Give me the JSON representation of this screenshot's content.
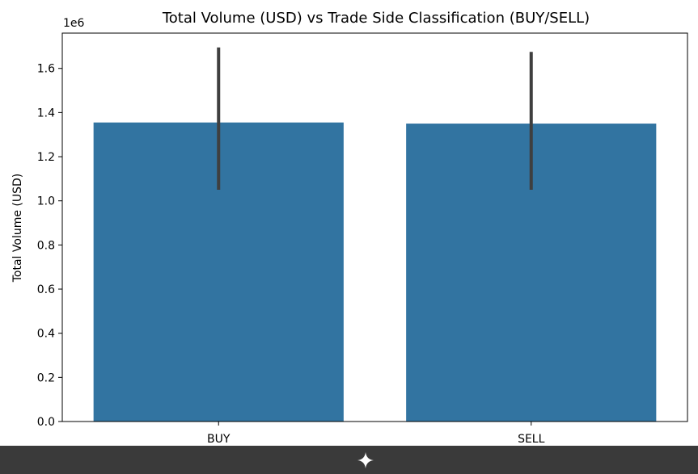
{
  "chart_data": {
    "type": "bar",
    "title": "Total Volume (USD) vs Trade Side Classification (BUY/SELL)",
    "xlabel": "",
    "ylabel": "Total Volume (USD)",
    "y_scale_label": "1e6",
    "y_multiplier": 1000000,
    "categories": [
      "BUY",
      "SELL"
    ],
    "values": [
      1355000,
      1350000
    ],
    "error_bars": [
      {
        "low": 1050000,
        "high": 1695000
      },
      {
        "low": 1050000,
        "high": 1675000
      }
    ],
    "ylim": [
      0,
      1760000
    ],
    "y_ticks": [
      0,
      200000,
      400000,
      600000,
      800000,
      1000000,
      1200000,
      1400000,
      1600000
    ],
    "grid": false,
    "bar_color": "#3274a1",
    "error_color": "#3f3f3f"
  },
  "toolbar": {
    "icon": "sparkle-icon",
    "background": "#3a3a3a",
    "icon_color": "#ffffff"
  }
}
